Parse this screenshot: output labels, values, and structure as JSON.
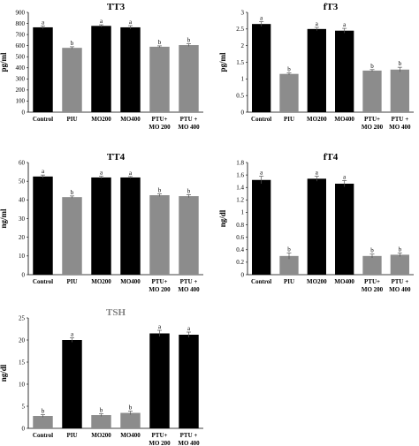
{
  "colors": {
    "black_bar": "#000000",
    "grey_bar": "#8c8c8c",
    "tsh_title": "#808080"
  },
  "chart_data": [
    {
      "type": "bar",
      "title": "TT3",
      "ylabel": "pg/ml",
      "ylim": [
        0,
        900
      ],
      "yticks": [
        "0",
        "100",
        "200",
        "300",
        "400",
        "500",
        "600",
        "700",
        "800",
        "900"
      ],
      "categories": [
        "Control",
        "PIU",
        "MO200",
        "MO400",
        "PTU+ MO 200",
        "PTU + MO 400"
      ],
      "values": [
        765,
        580,
        778,
        765,
        590,
        605
      ],
      "errors": [
        12,
        10,
        10,
        15,
        8,
        12
      ],
      "letters": [
        "a",
        "b",
        "a",
        "a",
        "b",
        "b"
      ],
      "bar_colors": [
        "black",
        "grey",
        "black",
        "black",
        "grey",
        "grey"
      ]
    },
    {
      "type": "bar",
      "title": "fT3",
      "ylabel": "pg/ml",
      "ylim": [
        0,
        3
      ],
      "yticks": [
        "0",
        "0.5",
        "1",
        "1.5",
        "2",
        "2.5",
        "3"
      ],
      "categories": [
        "Control",
        "PIU",
        "MO200",
        "MO400",
        "PTU+ MO 200",
        "PTU + MO 400"
      ],
      "values": [
        2.65,
        1.15,
        2.5,
        2.45,
        1.25,
        1.28
      ],
      "errors": [
        0.07,
        0.03,
        0.05,
        0.07,
        0.03,
        0.07
      ],
      "letters": [
        "a",
        "b",
        "a",
        "a",
        "b",
        "b"
      ],
      "bar_colors": [
        "black",
        "grey",
        "black",
        "black",
        "grey",
        "grey"
      ]
    },
    {
      "type": "bar",
      "title": "TT4",
      "ylabel": "ng/ml",
      "ylim": [
        0,
        60
      ],
      "yticks": [
        "0",
        "10",
        "20",
        "30",
        "40",
        "50",
        "60"
      ],
      "categories": [
        "Control",
        "PIU",
        "MO200",
        "MO400",
        "PTU+ MO 200",
        "PTU + MO 400"
      ],
      "values": [
        52.5,
        41.5,
        52,
        52,
        42.5,
        42
      ],
      "errors": [
        0.8,
        0.6,
        0.6,
        0.5,
        0.7,
        0.8
      ],
      "letters": [
        "a",
        "b",
        "a",
        "a",
        "b",
        "b"
      ],
      "bar_colors": [
        "black",
        "grey",
        "black",
        "black",
        "grey",
        "grey"
      ]
    },
    {
      "type": "bar",
      "title": "fT4",
      "ylabel": "ng/dl",
      "ylim": [
        0,
        1.8
      ],
      "yticks": [
        "0",
        "0.2",
        "0.4",
        "0.6",
        "0.8",
        "1",
        "1.2",
        "1.4",
        "1.6",
        "1.8"
      ],
      "categories": [
        "Control",
        "PIU",
        "MO200",
        "MO400",
        "PTU+ MO 200",
        "PTU + MO 400"
      ],
      "values": [
        1.52,
        0.3,
        1.54,
        1.46,
        0.3,
        0.32
      ],
      "errors": [
        0.06,
        0.05,
        0.04,
        0.05,
        0.03,
        0.03
      ],
      "letters": [
        "a",
        "b",
        "a",
        "a",
        "b",
        "b"
      ],
      "bar_colors": [
        "black",
        "grey",
        "black",
        "black",
        "grey",
        "grey"
      ]
    },
    {
      "type": "bar",
      "title": "TSH",
      "ylabel": "ng/dl",
      "ylim": [
        0,
        25
      ],
      "yticks": [
        "0",
        "5",
        "10",
        "15",
        "20",
        "25"
      ],
      "categories": [
        "Control",
        "PIU",
        "MO200",
        "MO400",
        "PTU+ MO 200",
        "PTU + MO 400"
      ],
      "values": [
        2.8,
        20,
        3,
        3.5,
        21.5,
        21.2
      ],
      "errors": [
        0.3,
        0.5,
        0.3,
        0.4,
        0.7,
        0.6
      ],
      "letters": [
        "b",
        "a",
        "b",
        "b",
        "a",
        "a"
      ],
      "bar_colors": [
        "grey",
        "black",
        "grey",
        "grey",
        "black",
        "black"
      ]
    }
  ]
}
